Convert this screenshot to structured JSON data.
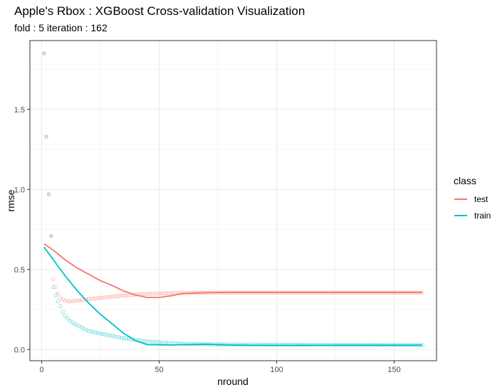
{
  "header": {
    "title": "Apple's Rbox : XGBoost Cross-validation Visualization",
    "subtitle": "fold : 5  iteration : 162"
  },
  "colors": {
    "test": "#F8766D",
    "train": "#00BFC4",
    "grid": "#ebebeb",
    "panel_border": "#333333",
    "individual_points": "#999999"
  },
  "chart_data": {
    "type": "line",
    "title": "Apple's Rbox : XGBoost Cross-validation Visualization",
    "subtitle": "fold : 5  iteration : 162",
    "xlabel": "nround",
    "ylabel": "rmse",
    "xlim": [
      -5,
      168
    ],
    "ylim": [
      -0.07,
      1.93
    ],
    "xticks": [
      0,
      50,
      100,
      150
    ],
    "xtick_labels": [
      "0",
      "50",
      "100",
      "150"
    ],
    "yticks": [
      0.0,
      0.5,
      1.0,
      1.5
    ],
    "ytick_labels": [
      "0.0",
      "0.5",
      "1.0",
      "1.5"
    ],
    "grid": true,
    "legend": {
      "title": "class",
      "position": "right",
      "entries": [
        "test",
        "train"
      ]
    },
    "series": [
      {
        "name": "test",
        "line_points": [
          [
            1,
            0.66
          ],
          [
            5,
            0.62
          ],
          [
            10,
            0.56
          ],
          [
            15,
            0.51
          ],
          [
            20,
            0.47
          ],
          [
            25,
            0.43
          ],
          [
            30,
            0.4
          ],
          [
            35,
            0.365
          ],
          [
            40,
            0.34
          ],
          [
            45,
            0.325
          ],
          [
            50,
            0.325
          ],
          [
            55,
            0.335
          ],
          [
            60,
            0.35
          ],
          [
            70,
            0.355
          ],
          [
            80,
            0.357
          ],
          [
            100,
            0.357
          ],
          [
            130,
            0.357
          ],
          [
            162,
            0.357
          ]
        ],
        "point_points": [
          [
            5,
            0.44
          ],
          [
            6,
            0.39
          ],
          [
            7,
            0.35
          ],
          [
            8,
            0.325
          ],
          [
            10,
            0.305
          ],
          [
            12,
            0.3
          ],
          [
            15,
            0.305
          ],
          [
            20,
            0.315
          ],
          [
            25,
            0.323
          ],
          [
            30,
            0.33
          ],
          [
            35,
            0.337
          ],
          [
            40,
            0.343
          ],
          [
            45,
            0.347
          ],
          [
            50,
            0.35
          ],
          [
            55,
            0.352
          ],
          [
            60,
            0.353
          ],
          [
            70,
            0.355
          ],
          [
            80,
            0.356
          ],
          [
            100,
            0.356
          ],
          [
            130,
            0.356
          ],
          [
            162,
            0.356
          ]
        ]
      },
      {
        "name": "train",
        "line_points": [
          [
            1,
            0.64
          ],
          [
            5,
            0.56
          ],
          [
            10,
            0.46
          ],
          [
            15,
            0.37
          ],
          [
            20,
            0.29
          ],
          [
            25,
            0.22
          ],
          [
            30,
            0.16
          ],
          [
            35,
            0.1
          ],
          [
            40,
            0.055
          ],
          [
            45,
            0.03
          ],
          [
            55,
            0.028
          ],
          [
            60,
            0.03
          ],
          [
            70,
            0.033
          ],
          [
            75,
            0.03
          ],
          [
            85,
            0.027
          ],
          [
            100,
            0.026
          ],
          [
            130,
            0.027
          ],
          [
            162,
            0.027
          ]
        ],
        "point_points": [
          [
            5,
            0.39
          ],
          [
            6,
            0.34
          ],
          [
            7,
            0.3
          ],
          [
            8,
            0.27
          ],
          [
            9,
            0.235
          ],
          [
            10,
            0.21
          ],
          [
            12,
            0.18
          ],
          [
            14,
            0.16
          ],
          [
            16,
            0.145
          ],
          [
            18,
            0.13
          ],
          [
            20,
            0.115
          ],
          [
            25,
            0.1
          ],
          [
            30,
            0.085
          ],
          [
            35,
            0.07
          ],
          [
            40,
            0.06
          ],
          [
            45,
            0.05
          ],
          [
            50,
            0.045
          ],
          [
            55,
            0.04
          ],
          [
            60,
            0.036
          ],
          [
            70,
            0.033
          ],
          [
            80,
            0.031
          ],
          [
            100,
            0.03
          ],
          [
            130,
            0.029
          ],
          [
            162,
            0.028
          ]
        ]
      }
    ],
    "early_points": {
      "x": [
        1,
        2,
        3,
        4
      ],
      "y": [
        1.85,
        1.33,
        0.97,
        0.71
      ]
    }
  }
}
